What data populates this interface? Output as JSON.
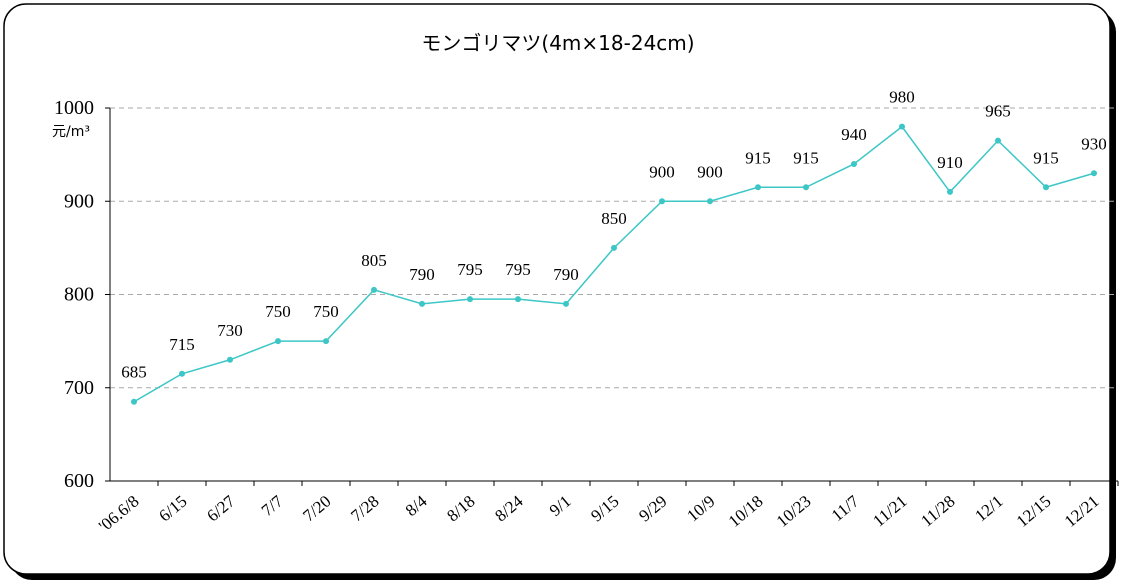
{
  "chart_data": {
    "type": "line",
    "title": "モンゴリマツ(4m×18-24cm)",
    "y_label": "元/m³",
    "categories": [
      "'06.6/8",
      "6/15",
      "6/27",
      "7/7",
      "7/20",
      "7/28",
      "8/4",
      "8/18",
      "8/24",
      "9/1",
      "9/15",
      "9/29",
      "10/9",
      "10/18",
      "10/23",
      "11/7",
      "11/21",
      "11/28",
      "12/1",
      "12/15",
      "12/21"
    ],
    "series": [
      {
        "color": "#3cc6c6",
        "values": [
          685,
          715,
          730,
          750,
          750,
          805,
          790,
          795,
          795,
          790,
          850,
          900,
          900,
          915,
          915,
          940,
          980,
          910,
          965,
          915,
          930
        ]
      }
    ],
    "ylim": [
      600,
      1000
    ],
    "yticks": [
      600,
      700,
      800,
      900,
      1000
    ],
    "grid": true
  }
}
